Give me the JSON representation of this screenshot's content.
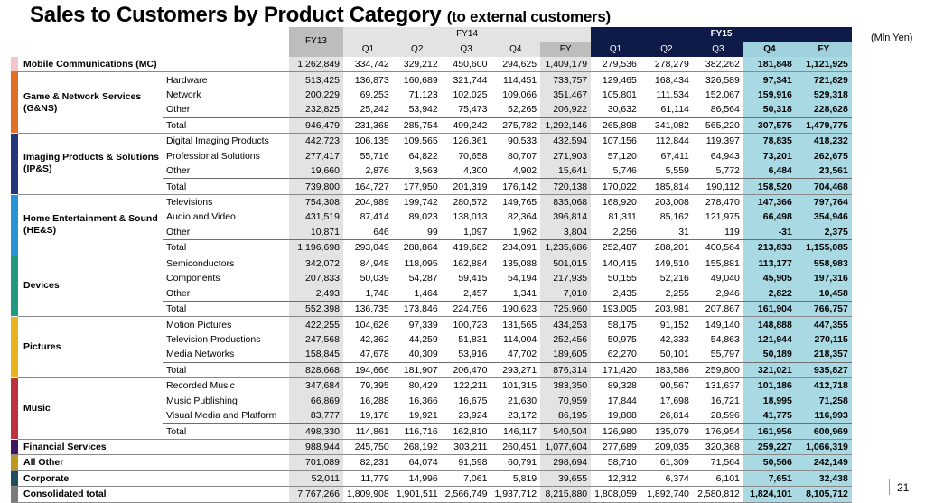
{
  "title_main": "Sales to Customers by Product Category",
  "title_sub": "(to external customers)",
  "unit": "(Mln Yen)",
  "page_number": "21",
  "headers": {
    "fy13": "FY13",
    "fy14": "FY14",
    "fy15": "FY15",
    "quarters14": [
      "Q1",
      "Q2",
      "Q3",
      "Q4",
      "FY"
    ],
    "quarters15": [
      "Q1",
      "Q2",
      "Q3",
      "Q4",
      "FY"
    ]
  },
  "colors": {
    "mc": "#f2c6cd",
    "gns": "#e26f23",
    "ips": "#26367a",
    "hes": "#2694d6",
    "devices": "#1e9b7e",
    "pictures": "#e7b51b",
    "music": "#c0313f",
    "fs": "#3d1a63",
    "other": "#bf9820",
    "corporate": "#1f4f5d",
    "consolidated": "#7a7a7a",
    "fy15_header": "#0e1a48",
    "fy15_highlight": "#a9d9e3"
  },
  "rows": [
    {
      "cat": "Mobile Communications (MC)",
      "color": "mc",
      "vals": [
        "1,262,849",
        "334,742",
        "329,212",
        "450,600",
        "294,625",
        "1,409,179",
        "279,536",
        "278,279",
        "382,262",
        "181,848",
        "1,121,925"
      ]
    },
    {
      "cat": "Game & Network Services (G&NS)",
      "color": "gns",
      "subs": [
        {
          "label": "Hardware",
          "vals": [
            "513,425",
            "136,873",
            "160,689",
            "321,744",
            "114,451",
            "733,757",
            "129,465",
            "168,434",
            "326,589",
            "97,341",
            "721,829"
          ]
        },
        {
          "label": "Network",
          "vals": [
            "200,229",
            "69,253",
            "71,123",
            "102,025",
            "109,066",
            "351,467",
            "105,801",
            "111,534",
            "152,067",
            "159,916",
            "529,318"
          ]
        },
        {
          "label": "Other",
          "vals": [
            "232,825",
            "25,242",
            "53,942",
            "75,473",
            "52,265",
            "206,922",
            "30,632",
            "61,114",
            "86,564",
            "50,318",
            "228,628"
          ]
        },
        {
          "label": "Total",
          "vals": [
            "946,479",
            "231,368",
            "285,754",
            "499,242",
            "275,782",
            "1,292,146",
            "265,898",
            "341,082",
            "565,220",
            "307,575",
            "1,479,775"
          ]
        }
      ]
    },
    {
      "cat": "Imaging Products & Solutions (IP&S)",
      "color": "ips",
      "subs": [
        {
          "label": "Digital Imaging Products",
          "vals": [
            "442,723",
            "106,135",
            "109,565",
            "126,361",
            "90,533",
            "432,594",
            "107,156",
            "112,844",
            "119,397",
            "78,835",
            "418,232"
          ]
        },
        {
          "label": "Professional Solutions",
          "vals": [
            "277,417",
            "55,716",
            "64,822",
            "70,658",
            "80,707",
            "271,903",
            "57,120",
            "67,411",
            "64,943",
            "73,201",
            "262,675"
          ]
        },
        {
          "label": "Other",
          "vals": [
            "19,660",
            "2,876",
            "3,563",
            "4,300",
            "4,902",
            "15,641",
            "5,746",
            "5,559",
            "5,772",
            "6,484",
            "23,561"
          ]
        },
        {
          "label": "Total",
          "vals": [
            "739,800",
            "164,727",
            "177,950",
            "201,319",
            "176,142",
            "720,138",
            "170,022",
            "185,814",
            "190,112",
            "158,520",
            "704,468"
          ]
        }
      ]
    },
    {
      "cat": "Home Entertainment & Sound (HE&S)",
      "color": "hes",
      "subs": [
        {
          "label": "Televisions",
          "vals": [
            "754,308",
            "204,989",
            "199,742",
            "280,572",
            "149,765",
            "835,068",
            "168,920",
            "203,008",
            "278,470",
            "147,366",
            "797,764"
          ]
        },
        {
          "label": "Audio and Video",
          "vals": [
            "431,519",
            "87,414",
            "89,023",
            "138,013",
            "82,364",
            "396,814",
            "81,311",
            "85,162",
            "121,975",
            "66,498",
            "354,946"
          ]
        },
        {
          "label": "Other",
          "vals": [
            "10,871",
            "646",
            "99",
            "1,097",
            "1,962",
            "3,804",
            "2,256",
            "31",
            "119",
            "-31",
            "2,375"
          ]
        },
        {
          "label": "Total",
          "vals": [
            "1,196,698",
            "293,049",
            "288,864",
            "419,682",
            "234,091",
            "1,235,686",
            "252,487",
            "288,201",
            "400,564",
            "213,833",
            "1,155,085"
          ]
        }
      ]
    },
    {
      "cat": "Devices",
      "color": "devices",
      "subs": [
        {
          "label": "Semiconductors",
          "vals": [
            "342,072",
            "84,948",
            "118,095",
            "162,884",
            "135,088",
            "501,015",
            "140,415",
            "149,510",
            "155,881",
            "113,177",
            "558,983"
          ]
        },
        {
          "label": "Components",
          "vals": [
            "207,833",
            "50,039",
            "54,287",
            "59,415",
            "54,194",
            "217,935",
            "50,155",
            "52,216",
            "49,040",
            "45,905",
            "197,316"
          ]
        },
        {
          "label": "Other",
          "vals": [
            "2,493",
            "1,748",
            "1,464",
            "2,457",
            "1,341",
            "7,010",
            "2,435",
            "2,255",
            "2,946",
            "2,822",
            "10,458"
          ]
        },
        {
          "label": "Total",
          "vals": [
            "552,398",
            "136,735",
            "173,846",
            "224,756",
            "190,623",
            "725,960",
            "193,005",
            "203,981",
            "207,867",
            "161,904",
            "766,757"
          ]
        }
      ]
    },
    {
      "cat": "Pictures",
      "color": "pictures",
      "subs": [
        {
          "label": "Motion Pictures",
          "vals": [
            "422,255",
            "104,626",
            "97,339",
            "100,723",
            "131,565",
            "434,253",
            "58,175",
            "91,152",
            "149,140",
            "148,888",
            "447,355"
          ]
        },
        {
          "label": "Television Productions",
          "vals": [
            "247,568",
            "42,362",
            "44,259",
            "51,831",
            "114,004",
            "252,456",
            "50,975",
            "42,333",
            "54,863",
            "121,944",
            "270,115"
          ]
        },
        {
          "label": "Media Networks",
          "vals": [
            "158,845",
            "47,678",
            "40,309",
            "53,916",
            "47,702",
            "189,605",
            "62,270",
            "50,101",
            "55,797",
            "50,189",
            "218,357"
          ]
        },
        {
          "label": "Total",
          "vals": [
            "828,668",
            "194,666",
            "181,907",
            "206,470",
            "293,271",
            "876,314",
            "171,420",
            "183,586",
            "259,800",
            "321,021",
            "935,827"
          ]
        }
      ]
    },
    {
      "cat": "Music",
      "color": "music",
      "subs": [
        {
          "label": "Recorded Music",
          "vals": [
            "347,684",
            "79,395",
            "80,429",
            "122,211",
            "101,315",
            "383,350",
            "89,328",
            "90,567",
            "131,637",
            "101,186",
            "412,718"
          ]
        },
        {
          "label": "Music Publishing",
          "vals": [
            "66,869",
            "16,288",
            "16,366",
            "16,675",
            "21,630",
            "70,959",
            "17,844",
            "17,698",
            "16,721",
            "18,995",
            "71,258"
          ]
        },
        {
          "label": "Visual Media and Platform",
          "vals": [
            "83,777",
            "19,178",
            "19,921",
            "23,924",
            "23,172",
            "86,195",
            "19,808",
            "26,814",
            "28,596",
            "41,775",
            "116,993"
          ]
        },
        {
          "label": "Total",
          "vals": [
            "498,330",
            "114,861",
            "116,716",
            "162,810",
            "146,117",
            "540,504",
            "126,980",
            "135,079",
            "176,954",
            "161,956",
            "600,969"
          ]
        }
      ]
    },
    {
      "cat": "Financial Services",
      "color": "fs",
      "vals": [
        "988,944",
        "245,750",
        "268,192",
        "303,211",
        "260,451",
        "1,077,604",
        "277,689",
        "209,035",
        "320,368",
        "259,227",
        "1,066,319"
      ]
    },
    {
      "cat": "All Other",
      "color": "other",
      "vals": [
        "701,089",
        "82,231",
        "64,074",
        "91,598",
        "60,791",
        "298,694",
        "58,710",
        "61,309",
        "71,564",
        "50,566",
        "242,149"
      ]
    },
    {
      "cat": "Corporate",
      "color": "corporate",
      "vals": [
        "52,011",
        "11,779",
        "14,996",
        "7,061",
        "5,819",
        "39,655",
        "12,312",
        "6,374",
        "6,101",
        "7,651",
        "32,438"
      ]
    },
    {
      "cat": "Consolidated total",
      "color": "consolidated",
      "vals": [
        "7,767,266",
        "1,809,908",
        "1,901,511",
        "2,566,749",
        "1,937,712",
        "8,215,880",
        "1,808,059",
        "1,892,740",
        "2,580,812",
        "1,824,101",
        "8,105,712"
      ]
    }
  ]
}
